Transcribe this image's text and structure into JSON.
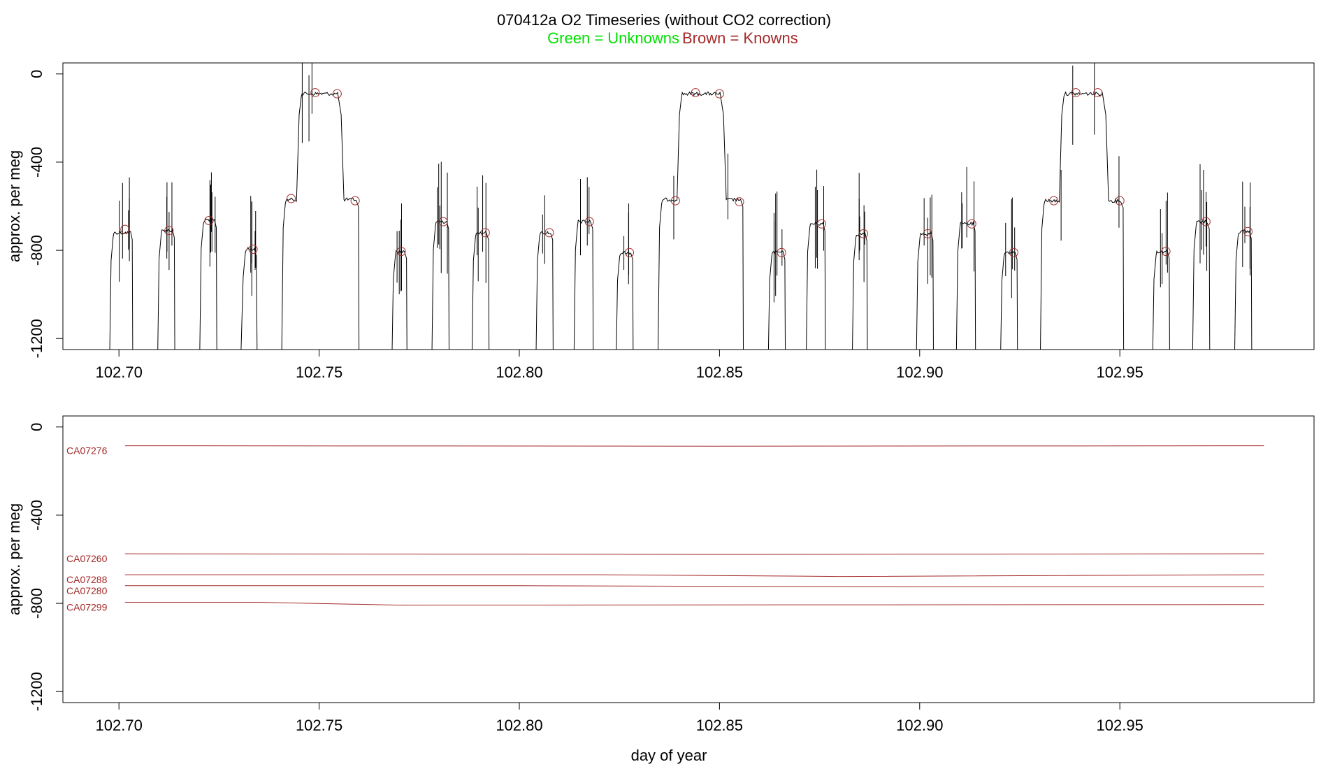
{
  "title": {
    "main": "070412a   O2 Timeseries (without CO2 correction)",
    "legend_unknowns": "Green = Unknowns",
    "legend_knowns": "Brown = Knowns"
  },
  "colors": {
    "unknowns": "#00e000",
    "knowns": "#a52a2a",
    "trace": "#000000"
  },
  "chart_data": [
    {
      "type": "line",
      "panel": "top",
      "ylabel": "approx. per meg",
      "xlabel": "",
      "xlim": [
        102.686,
        102.9985
      ],
      "ylim": [
        -1250,
        50
      ],
      "x_ticks": [
        102.7,
        102.75,
        102.8,
        102.85,
        102.9,
        102.95
      ],
      "x_tick_labels": [
        "102.70",
        "102.75",
        "102.80",
        "102.85",
        "102.90",
        "102.95"
      ],
      "y_ticks": [
        0,
        -400,
        -800,
        -1200
      ],
      "y_tick_labels": [
        "0",
        "-400",
        "-800",
        "-1200"
      ],
      "segments": [
        {
          "start": 102.6975,
          "end": 102.7035,
          "level": -720,
          "low": -1500,
          "open": "up"
        },
        {
          "start": 102.7095,
          "end": 102.714,
          "level": -710,
          "low": -1500,
          "open": "down"
        },
        {
          "start": 102.72,
          "end": 102.7245,
          "level": -665,
          "low": -1500,
          "open": "down"
        },
        {
          "start": 102.7305,
          "end": 102.7345,
          "level": -795,
          "low": -1250,
          "open": "down"
        },
        {
          "start": 102.7405,
          "end": 102.76,
          "level": -570,
          "low": -1500,
          "open": "down",
          "hump": {
            "start": 102.745,
            "end": 102.7555,
            "level": -90
          }
        },
        {
          "start": 102.768,
          "end": 102.772,
          "level": -805,
          "low": -1500,
          "open": "down"
        },
        {
          "start": 102.778,
          "end": 102.7825,
          "level": -670,
          "low": -1500,
          "open": "down"
        },
        {
          "start": 102.788,
          "end": 102.7925,
          "level": -720,
          "low": -1500,
          "open": "down"
        },
        {
          "start": 102.804,
          "end": 102.8085,
          "level": -720,
          "low": -1500,
          "open": "down"
        },
        {
          "start": 102.8135,
          "end": 102.8185,
          "level": -670,
          "low": -1500,
          "open": "down"
        },
        {
          "start": 102.824,
          "end": 102.8285,
          "level": -810,
          "low": -1500,
          "open": "down"
        },
        {
          "start": 102.8345,
          "end": 102.856,
          "level": -570,
          "low": -1500,
          "open": "down",
          "hump": {
            "start": 102.84,
            "end": 102.851,
            "level": -90
          }
        },
        {
          "start": 102.862,
          "end": 102.8665,
          "level": -810,
          "low": -1500,
          "open": "down"
        },
        {
          "start": 102.8715,
          "end": 102.8765,
          "level": -680,
          "low": -1500,
          "open": "down"
        },
        {
          "start": 102.883,
          "end": 102.887,
          "level": -725,
          "low": -1500,
          "open": "down"
        },
        {
          "start": 102.899,
          "end": 102.9035,
          "level": -725,
          "low": -1500,
          "open": "down"
        },
        {
          "start": 102.909,
          "end": 102.914,
          "level": -680,
          "low": -1500,
          "open": "down"
        },
        {
          "start": 102.92,
          "end": 102.9245,
          "level": -810,
          "low": -1500,
          "open": "down"
        },
        {
          "start": 102.93,
          "end": 102.951,
          "level": -575,
          "low": -1500,
          "open": "down",
          "hump": {
            "start": 102.9355,
            "end": 102.9465,
            "level": -90
          }
        },
        {
          "start": 102.958,
          "end": 102.9625,
          "level": -805,
          "low": -1500,
          "open": "down"
        },
        {
          "start": 102.968,
          "end": 102.9725,
          "level": -670,
          "low": -1500,
          "open": "down"
        },
        {
          "start": 102.9785,
          "end": 102.983,
          "level": -715,
          "low": -1500,
          "open": "down"
        }
      ],
      "known_markers": [
        {
          "x": 102.7015,
          "y": -705
        },
        {
          "x": 102.7125,
          "y": -710
        },
        {
          "x": 102.7225,
          "y": -665
        },
        {
          "x": 102.7335,
          "y": -795
        },
        {
          "x": 102.743,
          "y": -565
        },
        {
          "x": 102.749,
          "y": -85
        },
        {
          "x": 102.7545,
          "y": -90
        },
        {
          "x": 102.759,
          "y": -575
        },
        {
          "x": 102.7705,
          "y": -805
        },
        {
          "x": 102.781,
          "y": -670
        },
        {
          "x": 102.7915,
          "y": -720
        },
        {
          "x": 102.8075,
          "y": -720
        },
        {
          "x": 102.8175,
          "y": -670
        },
        {
          "x": 102.8275,
          "y": -810
        },
        {
          "x": 102.839,
          "y": -575
        },
        {
          "x": 102.844,
          "y": -85
        },
        {
          "x": 102.85,
          "y": -90
        },
        {
          "x": 102.855,
          "y": -580
        },
        {
          "x": 102.8655,
          "y": -810
        },
        {
          "x": 102.8755,
          "y": -680
        },
        {
          "x": 102.886,
          "y": -725
        },
        {
          "x": 102.902,
          "y": -725
        },
        {
          "x": 102.913,
          "y": -680
        },
        {
          "x": 102.9235,
          "y": -810
        },
        {
          "x": 102.9335,
          "y": -575
        },
        {
          "x": 102.939,
          "y": -85
        },
        {
          "x": 102.9445,
          "y": -85
        },
        {
          "x": 102.95,
          "y": -575
        },
        {
          "x": 102.9615,
          "y": -805
        },
        {
          "x": 102.9715,
          "y": -670
        },
        {
          "x": 102.982,
          "y": -715
        }
      ]
    },
    {
      "type": "line",
      "panel": "bottom",
      "xlabel": "day of year",
      "ylabel": "approx. per meg",
      "xlim": [
        102.686,
        102.9985
      ],
      "ylim": [
        -1250,
        50
      ],
      "x_ticks": [
        102.7,
        102.75,
        102.8,
        102.85,
        102.9,
        102.95
      ],
      "x_tick_labels": [
        "102.70",
        "102.75",
        "102.80",
        "102.85",
        "102.90",
        "102.95"
      ],
      "y_ticks": [
        0,
        -400,
        -800,
        -1200
      ],
      "y_tick_labels": [
        "0",
        "-400",
        "-800",
        "-1200"
      ],
      "series": [
        {
          "name": "CA07276",
          "x": [
            102.7015,
            102.85,
            102.986
          ],
          "y": [
            -85,
            -87,
            -85
          ]
        },
        {
          "name": "CA07260",
          "x": [
            102.7015,
            102.85,
            102.986
          ],
          "y": [
            -575,
            -578,
            -575
          ]
        },
        {
          "name": "CA07288",
          "x": [
            102.7015,
            102.82,
            102.88,
            102.986
          ],
          "y": [
            -670,
            -670,
            -678,
            -670
          ]
        },
        {
          "name": "CA07280",
          "x": [
            102.7015,
            102.8,
            102.9,
            102.986
          ],
          "y": [
            -720,
            -720,
            -725,
            -725
          ]
        },
        {
          "name": "CA07299",
          "x": [
            102.7015,
            102.735,
            102.77,
            102.986
          ],
          "y": [
            -795,
            -795,
            -808,
            -805
          ]
        }
      ]
    }
  ]
}
